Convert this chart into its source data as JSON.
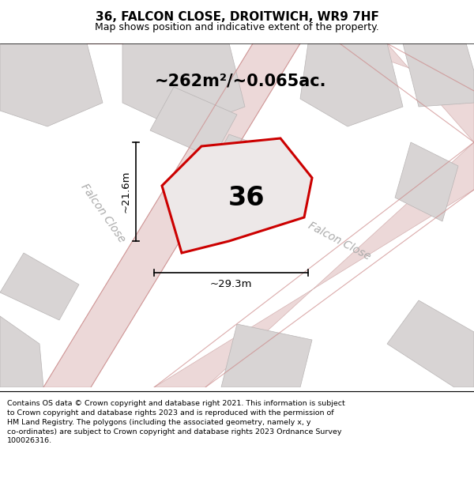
{
  "title": "36, FALCON CLOSE, DROITWICH, WR9 7HF",
  "subtitle": "Map shows position and indicative extent of the property.",
  "area_label": "~262m²/~0.065ac.",
  "plot_number": "36",
  "dim_width": "~29.3m",
  "dim_height": "~21.6m",
  "street_label1": "Falcon Close",
  "street_label2": "Falcon Close",
  "footer_text": "Contains OS data © Crown copyright and database right 2021. This information is subject\nto Crown copyright and database rights 2023 and is reproduced with the permission of\nHM Land Registry. The polygons (including the associated geometry, namely x, y\nco-ordinates) are subject to Crown copyright and database rights 2023 Ordnance Survey\n100026316.",
  "map_bg": "#f5f0f0",
  "plot_fill": "#e8e0e0",
  "plot_edge": "#cc0000",
  "building_fill": "#d8d4d4",
  "building_edge": "#b8b4b4",
  "road_fill": "#ecd8d8",
  "road_edge": "#d4b0b0",
  "title_fontsize": 11,
  "subtitle_fontsize": 9,
  "area_fontsize": 15,
  "plot_num_fontsize": 24,
  "dim_fontsize": 9.5,
  "street_fontsize": 10,
  "footer_fontsize": 6.8
}
